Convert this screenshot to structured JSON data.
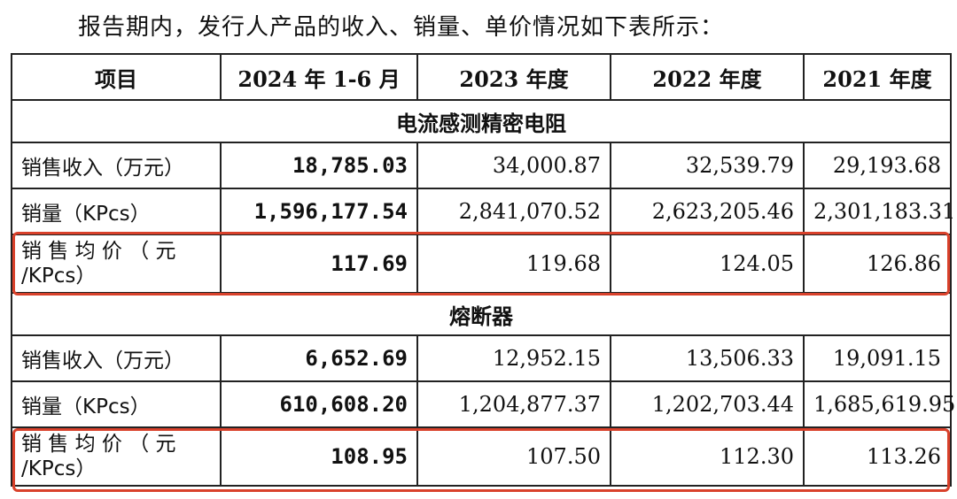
{
  "intro_text": "报告期内，发行人产品的收入、销量、单价情况如下表所示：",
  "table": {
    "headers": [
      "项目",
      "2024 年 1-6 月",
      "2023 年度",
      "2022 年度",
      "2021 年度"
    ],
    "sections": [
      {
        "title": "电流感测精密电阻",
        "rows": [
          {
            "label": "销售收入（万元）",
            "values": [
              "18,785.03",
              "34,000.87",
              "32,539.79",
              "29,193.68"
            ]
          },
          {
            "label": "销量（KPcs）",
            "values": [
              "1,596,177.54",
              "2,841,070.52",
              "2,623,205.46",
              "2,301,183.31"
            ]
          },
          {
            "label_line1": "销 售 均 价 （ 元",
            "label_line2": "/KPcs）",
            "values": [
              "117.69",
              "119.68",
              "124.05",
              "126.86"
            ]
          }
        ]
      },
      {
        "title": "熔断器",
        "rows": [
          {
            "label": "销售收入（万元）",
            "values": [
              "6,652.69",
              "12,952.15",
              "13,506.33",
              "19,091.15"
            ]
          },
          {
            "label": "销量（KPcs）",
            "values": [
              "610,608.20",
              "1,204,877.37",
              "1,202,703.44",
              "1,685,619.95"
            ]
          },
          {
            "label_line1": "销 售 均 价 （ 元",
            "label_line2": "/KPcs）",
            "values": [
              "108.95",
              "107.50",
              "112.30",
              "113.26"
            ]
          }
        ]
      }
    ]
  },
  "colors": {
    "highlight": "#d9412b",
    "border": "#222222"
  }
}
